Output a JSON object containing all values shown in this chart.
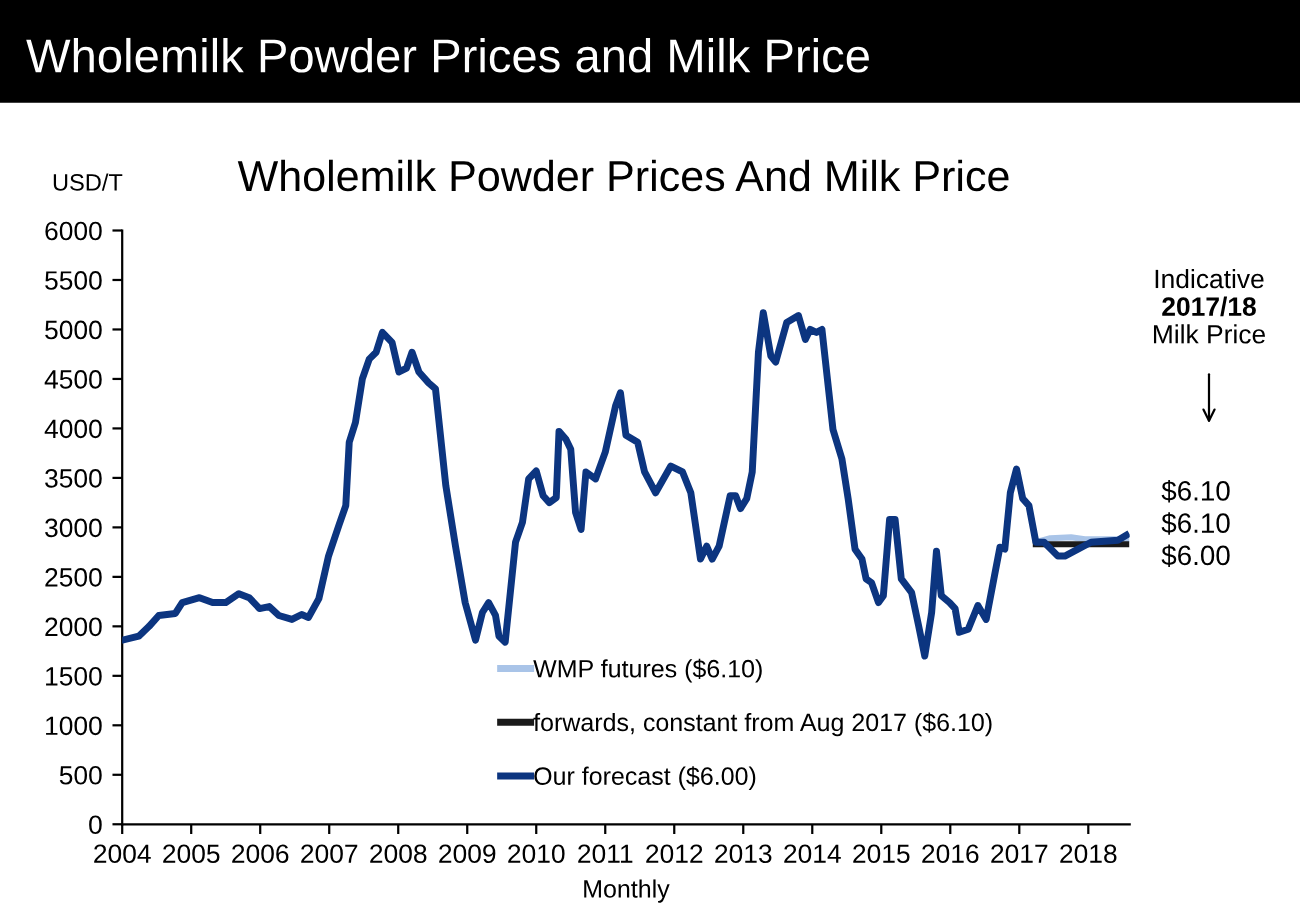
{
  "chart_data": {
    "type": "line",
    "title": "Wholemilk Powder Prices and Milk Price",
    "subtitle": "Wholemilk Powder Prices And Milk Price",
    "ylabel": "USD/T",
    "xlabel": "Monthly",
    "xlim": [
      2004,
      2018.6
    ],
    "xticks": [
      2004,
      2005,
      2006,
      2007,
      2008,
      2009,
      2010,
      2011,
      2012,
      2013,
      2014,
      2015,
      2016,
      2017,
      2018
    ],
    "ylim": [
      0,
      6000
    ],
    "yticks": [
      0,
      500,
      1000,
      1500,
      2000,
      2500,
      3000,
      3500,
      4000,
      4500,
      5000,
      5500,
      6000
    ],
    "grid": false,
    "legend": "bottom",
    "marker": "none",
    "line_style": "solid",
    "annotations": [
      "Indicative",
      "2017/18",
      "Milk Price",
      "$6.10",
      "$6.10",
      "$6.00"
    ],
    "series": [
      {
        "name": "WMP futures ($6.10)",
        "color": "#a9c4e8",
        "x": [
          2017.24,
          2017.45,
          2017.75,
          2017.95,
          2018.55
        ],
        "values": [
          2850,
          2890,
          2900,
          2880,
          2880
        ]
      },
      {
        "name": "forwards, constant from Aug 2017 ($6.10)",
        "color": "#1a1a1a",
        "x": [
          2017.24,
          2018.55
        ],
        "values": [
          2830,
          2830
        ]
      },
      {
        "name": "Our forecast ($6.00)",
        "color": "#0c3580",
        "x": [
          2004.0,
          2004.24,
          2004.39,
          2004.53,
          2004.77,
          2004.87,
          2005.12,
          2005.31,
          2005.5,
          2005.69,
          2005.84,
          2005.99,
          2006.13,
          2006.27,
          2006.46,
          2006.6,
          2006.7,
          2006.85,
          2006.99,
          2007.14,
          2007.24,
          2007.29,
          2007.38,
          2007.48,
          2007.58,
          2007.68,
          2007.77,
          2007.91,
          2008.01,
          2008.12,
          2008.2,
          2008.3,
          2008.44,
          2008.54,
          2008.69,
          2008.83,
          2008.97,
          2009.12,
          2009.22,
          2009.31,
          2009.41,
          2009.46,
          2009.55,
          2009.7,
          2009.8,
          2009.89,
          2010.0,
          2010.1,
          2010.19,
          2010.29,
          2010.33,
          2010.43,
          2010.5,
          2010.57,
          2010.65,
          2010.72,
          2010.86,
          2011.0,
          2011.15,
          2011.22,
          2011.3,
          2011.47,
          2011.57,
          2011.73,
          2011.95,
          2012.12,
          2012.24,
          2012.38,
          2012.47,
          2012.55,
          2012.65,
          2012.81,
          2012.89,
          2012.96,
          2013.05,
          2013.13,
          2013.22,
          2013.29,
          2013.4,
          2013.47,
          2013.63,
          2013.8,
          2013.9,
          2013.97,
          2014.06,
          2014.14,
          2014.3,
          2014.43,
          2014.52,
          2014.62,
          2014.72,
          2014.78,
          2014.86,
          2014.96,
          2015.03,
          2015.12,
          2015.2,
          2015.29,
          2015.44,
          2015.54,
          2015.63,
          2015.73,
          2015.8,
          2015.87,
          2015.99,
          2016.07,
          2016.13,
          2016.26,
          2016.4,
          2016.52,
          2016.64,
          2016.72,
          2016.79,
          2016.87,
          2016.96,
          2017.05,
          2017.14,
          2017.24,
          2017.36,
          2017.56,
          2017.66,
          2017.85,
          2018.04,
          2018.43,
          2018.55
        ],
        "values": [
          1860,
          1900,
          2000,
          2110,
          2130,
          2240,
          2290,
          2240,
          2240,
          2330,
          2290,
          2180,
          2200,
          2110,
          2070,
          2120,
          2090,
          2280,
          2710,
          3020,
          3220,
          3860,
          4060,
          4500,
          4700,
          4770,
          4970,
          4870,
          4570,
          4610,
          4770,
          4570,
          4460,
          4400,
          3420,
          2810,
          2240,
          1860,
          2140,
          2240,
          2110,
          1900,
          1840,
          2850,
          3050,
          3490,
          3570,
          3320,
          3250,
          3300,
          3970,
          3890,
          3790,
          3150,
          2980,
          3560,
          3490,
          3760,
          4230,
          4360,
          3930,
          3860,
          3560,
          3350,
          3620,
          3560,
          3350,
          2680,
          2810,
          2680,
          2810,
          3320,
          3320,
          3190,
          3290,
          3560,
          4770,
          5170,
          4730,
          4670,
          5070,
          5140,
          4900,
          5000,
          4970,
          5000,
          3990,
          3690,
          3290,
          2780,
          2680,
          2480,
          2440,
          2240,
          2310,
          3080,
          3080,
          2480,
          2340,
          2010,
          1700,
          2140,
          2760,
          2310,
          2240,
          2180,
          1940,
          1970,
          2210,
          2070,
          2510,
          2800,
          2780,
          3350,
          3590,
          3290,
          3220,
          2850,
          2850,
          2710,
          2710,
          2780,
          2850,
          2870,
          2920
        ]
      }
    ]
  }
}
